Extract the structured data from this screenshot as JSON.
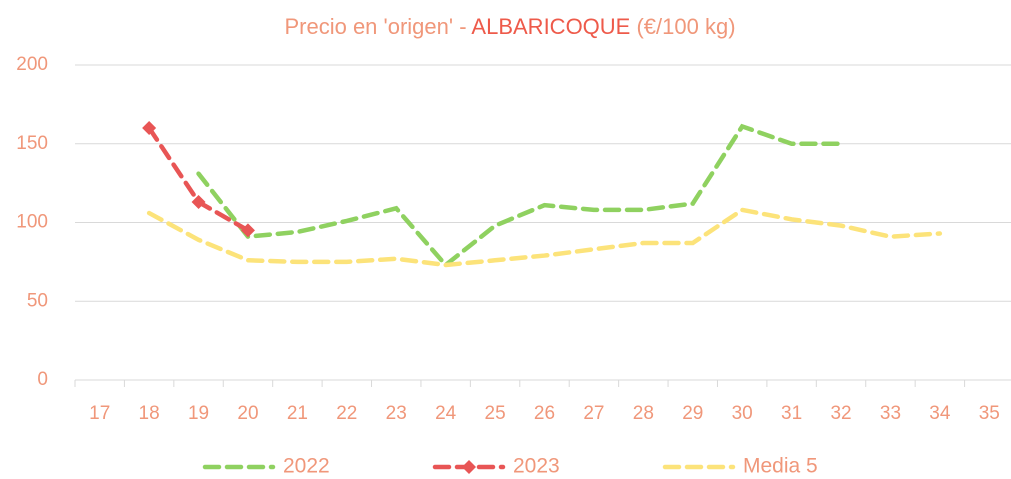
{
  "chart_data": {
    "type": "line",
    "title": [
      "Precio en 'origen' - ",
      "ALBARICOQUE",
      " (€/100 kg)"
    ],
    "categories": [
      17,
      18,
      19,
      20,
      21,
      22,
      23,
      24,
      25,
      26,
      27,
      28,
      29,
      30,
      31,
      32,
      33,
      34,
      35
    ],
    "series": [
      {
        "name": "2022",
        "color": "#8fd160",
        "values": [
          null,
          null,
          131,
          91,
          94,
          101,
          109,
          73,
          98,
          111,
          108,
          108,
          112,
          161,
          150,
          150,
          null,
          null,
          null
        ]
      },
      {
        "name": "2023",
        "color": "#e85555",
        "marker": "diamond",
        "values": [
          null,
          160,
          113,
          95,
          null,
          null,
          null,
          null,
          null,
          null,
          null,
          null,
          null,
          null,
          null,
          null,
          null,
          null,
          null
        ]
      },
      {
        "name": "Media 5",
        "color": "#fce37a",
        "values": [
          null,
          106,
          89,
          76,
          75,
          75,
          77,
          73,
          76,
          79,
          83,
          87,
          87,
          108,
          102,
          98,
          91,
          93,
          null
        ]
      }
    ],
    "ylim": [
      0,
      200
    ],
    "yticks": [
      0,
      50,
      100,
      150,
      200
    ],
    "grid": true,
    "legend": "bottom"
  }
}
